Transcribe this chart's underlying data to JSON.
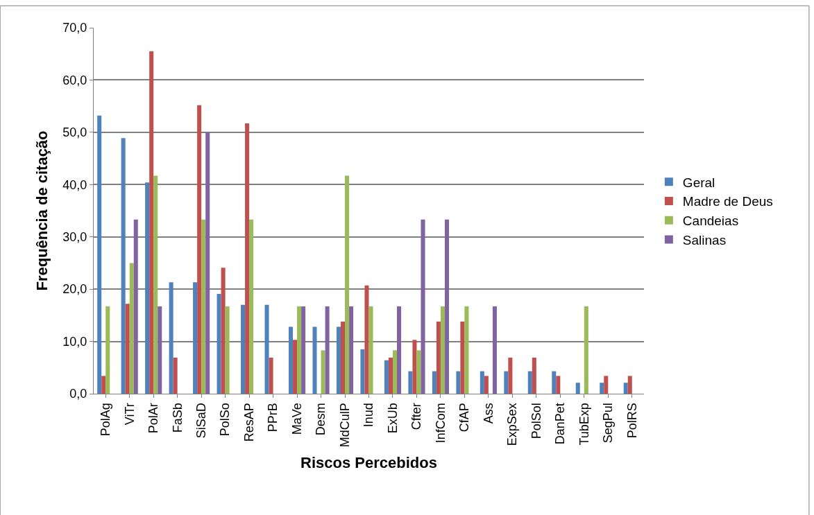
{
  "chart_data": {
    "type": "bar",
    "xlabel": "Riscos Percebidos",
    "ylabel": "Frequência de citação",
    "categories": [
      "PolAg",
      "ViTr",
      "PolAr",
      "FaSb",
      "SiSaD",
      "PolSo",
      "ResAP",
      "PPrB",
      "MaVe",
      "Desm",
      "MdCulP",
      "Inud",
      "ExUb",
      "Cfter",
      "InfCom",
      "CfAP",
      "Ass",
      "ExpSex",
      "PolSol",
      "DanPet",
      "TubExp",
      "SegPul",
      "PolRS"
    ],
    "series": [
      {
        "name": "Geral",
        "color": "#4f81bd",
        "values": [
          53.2,
          48.9,
          40.4,
          21.3,
          21.3,
          19.1,
          17.0,
          17.0,
          12.8,
          12.8,
          12.8,
          8.5,
          6.4,
          4.3,
          4.3,
          4.3,
          4.3,
          4.3,
          4.3,
          4.3,
          2.1,
          2.1,
          2.1
        ]
      },
      {
        "name": "Madre de Deus",
        "color": "#c0504d",
        "values": [
          3.4,
          17.2,
          65.5,
          6.9,
          55.2,
          24.1,
          51.7,
          6.9,
          10.3,
          0,
          13.8,
          20.7,
          6.9,
          10.3,
          13.8,
          13.8,
          3.4,
          6.9,
          6.9,
          3.4,
          0,
          3.4,
          3.4
        ]
      },
      {
        "name": "Candeias",
        "color": "#9bbb59",
        "values": [
          16.7,
          25.0,
          41.7,
          0,
          33.3,
          16.7,
          33.3,
          0,
          16.7,
          8.3,
          41.7,
          16.7,
          8.3,
          8.3,
          16.7,
          16.7,
          0,
          0,
          0,
          0,
          16.7,
          0,
          0
        ]
      },
      {
        "name": "Salinas",
        "color": "#8064a2",
        "values": [
          0,
          33.3,
          16.7,
          0,
          50.0,
          0,
          0,
          0,
          16.7,
          16.7,
          16.7,
          0,
          16.7,
          33.3,
          33.3,
          0,
          16.7,
          0,
          0,
          0,
          0,
          0,
          0
        ]
      }
    ],
    "ylim": [
      0,
      70
    ],
    "yticks": [
      {
        "value": 0,
        "label": "0,0"
      },
      {
        "value": 10,
        "label": "10,0"
      },
      {
        "value": 20,
        "label": "20,0"
      },
      {
        "value": 30,
        "label": "30,0"
      },
      {
        "value": 40,
        "label": "40,0"
      },
      {
        "value": 50,
        "label": "50,0"
      },
      {
        "value": 60,
        "label": "60,0"
      },
      {
        "value": 70,
        "label": "70,0"
      }
    ],
    "grid": "y",
    "legend": "right"
  }
}
